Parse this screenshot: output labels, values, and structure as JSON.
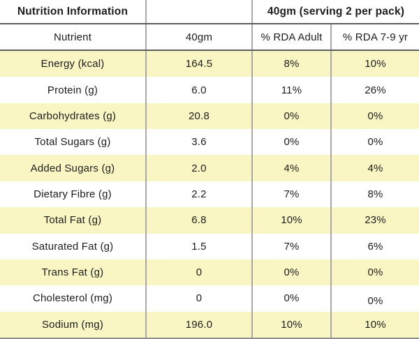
{
  "colors": {
    "stripe_yellow": "#faf6c4",
    "grid_vertical": "#a8a8a8",
    "grid_header_line": "#5d5d5d",
    "grid_bottom_line": "#909090",
    "text": "#1c1c1c"
  },
  "table": {
    "header_top": {
      "title": "Nutrition Information",
      "empty": "",
      "serving": "40gm (serving 2 per pack)"
    },
    "columns": [
      "Nutrient",
      "40gm",
      "% RDA Adult",
      "% RDA 7-9 yr"
    ],
    "rows": [
      {
        "nutrient": "Energy (kcal)",
        "amount": "164.5",
        "rda_adult": "8%",
        "rda_7_9": "10%"
      },
      {
        "nutrient": "Protein (g)",
        "amount": "6.0",
        "rda_adult": "11%",
        "rda_7_9": "26%"
      },
      {
        "nutrient": "Carbohydrates (g)",
        "amount": "20.8",
        "rda_adult": "0%",
        "rda_7_9": "0%"
      },
      {
        "nutrient": "Total Sugars (g)",
        "amount": "3.6",
        "rda_adult": "0%",
        "rda_7_9": "0%"
      },
      {
        "nutrient": "Added Sugars (g)",
        "amount": "2.0",
        "rda_adult": "4%",
        "rda_7_9": "4%"
      },
      {
        "nutrient": "Dietary Fibre (g)",
        "amount": "2.2",
        "rda_adult": "7%",
        "rda_7_9": "8%"
      },
      {
        "nutrient": "Total Fat (g)",
        "amount": "6.8",
        "rda_adult": "10%",
        "rda_7_9": "23%"
      },
      {
        "nutrient": "Saturated Fat (g)",
        "amount": "1.5",
        "rda_adult": "7%",
        "rda_7_9": "6%"
      },
      {
        "nutrient": "Trans Fat (g)",
        "amount": "0",
        "rda_adult": "0%",
        "rda_7_9": "0%"
      },
      {
        "nutrient": "Cholesterol (mg)",
        "amount": "0",
        "rda_adult": "0%",
        "rda_7_9": "0%"
      },
      {
        "nutrient": "Sodium (mg)",
        "amount": "196.0",
        "rda_adult": "10%",
        "rda_7_9": "10%"
      }
    ]
  }
}
